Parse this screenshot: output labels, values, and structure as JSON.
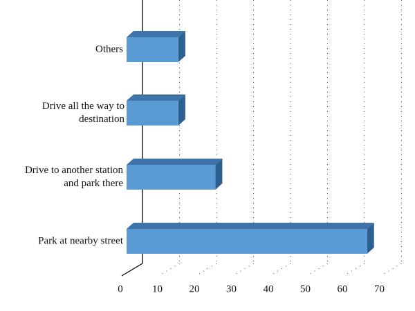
{
  "chart_data": {
    "type": "bar3d_horizontal",
    "categories": [
      "Others",
      "Drive all the way to destination",
      "Drive to another station and park there",
      "Park at nearby street"
    ],
    "values": [
      14,
      14,
      24,
      65
    ],
    "color": "#5b9bd5",
    "xlim": [
      0,
      70
    ],
    "xticks": [
      0,
      10,
      20,
      30,
      40,
      50,
      60,
      70
    ],
    "grid": true
  }
}
